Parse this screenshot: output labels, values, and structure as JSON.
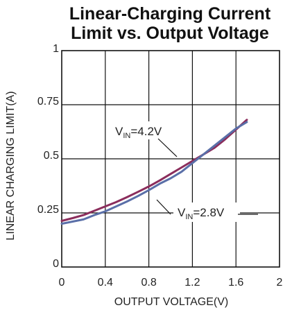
{
  "chart_data": {
    "type": "line",
    "title": [
      "Linear-Charging Current",
      "Limit vs. Output Voltage"
    ],
    "xlabel": "OUTPUT VOLTAGE(V)",
    "ylabel": "LINEAR CHARGING LIMIT(A)",
    "xlim": [
      0,
      2
    ],
    "ylim": [
      0,
      1
    ],
    "xticks": [
      0,
      0.4,
      0.8,
      1.2,
      1.6,
      2
    ],
    "xtick_labels": [
      "0",
      "0.4",
      "0.8",
      "1.2",
      "1.6",
      "2"
    ],
    "yticks": [
      0,
      0.25,
      0.5,
      0.75,
      1
    ],
    "ytick_labels": [
      "0",
      "0.25",
      "0.5",
      "0.75",
      "1"
    ],
    "grid": true,
    "series": [
      {
        "name": "V_IN=4.2V",
        "label_main": "V",
        "label_sub": "IN",
        "label_rest": "=4.2V",
        "color": "#8b2d5c",
        "x": [
          0,
          0.1,
          0.2,
          0.3,
          0.4,
          0.5,
          0.6,
          0.7,
          0.8,
          0.9,
          1.0,
          1.1,
          1.2,
          1.3,
          1.4,
          1.5,
          1.6,
          1.7
        ],
        "y": [
          0.213,
          0.226,
          0.24,
          0.26,
          0.28,
          0.3,
          0.323,
          0.347,
          0.372,
          0.4,
          0.43,
          0.46,
          0.49,
          0.52,
          0.55,
          0.59,
          0.635,
          0.68
        ]
      },
      {
        "name": "V_IN=2.8V",
        "label_main": "V",
        "label_sub": "IN",
        "label_rest": "=2.8V",
        "color": "#5a6fa8",
        "x": [
          0,
          0.1,
          0.2,
          0.3,
          0.4,
          0.5,
          0.6,
          0.7,
          0.8,
          0.9,
          1.0,
          1.1,
          1.2,
          1.3,
          1.4,
          1.5,
          1.6,
          1.7
        ],
        "y": [
          0.2,
          0.21,
          0.22,
          0.24,
          0.257,
          0.28,
          0.303,
          0.328,
          0.355,
          0.385,
          0.41,
          0.44,
          0.48,
          0.52,
          0.56,
          0.6,
          0.64,
          0.67
        ]
      }
    ]
  }
}
